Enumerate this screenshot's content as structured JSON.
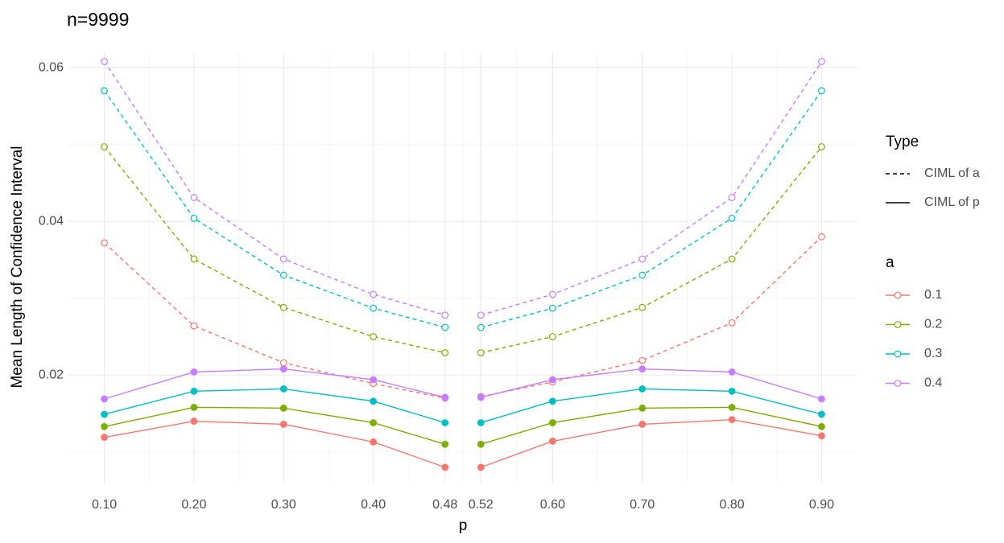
{
  "chart_data": {
    "type": "line",
    "title": "n=9999",
    "x_label": "p",
    "y_label": "Mean Length of Confidence Interval",
    "x": [
      0.1,
      0.2,
      0.3,
      0.4,
      0.48,
      null,
      0.52,
      0.6,
      0.7,
      0.8,
      0.9
    ],
    "xlim": [
      0.06,
      0.94
    ],
    "xticks": [
      {
        "value": 0.1,
        "label": "0.10"
      },
      {
        "value": 0.2,
        "label": "0.20"
      },
      {
        "value": 0.3,
        "label": "0.30"
      },
      {
        "value": 0.4,
        "label": "0.40"
      },
      0.48,
      0.52,
      {
        "value": 0.6,
        "label": "0.60"
      },
      {
        "value": 0.7,
        "label": "0.70"
      },
      {
        "value": 0.8,
        "label": "0.80"
      },
      {
        "value": 0.9,
        "label": "0.90"
      }
    ],
    "xminor": [
      0.15,
      0.25,
      0.35,
      0.44,
      0.5,
      0.56,
      0.65,
      0.75,
      0.85
    ],
    "ylim": [
      0.006,
      0.062
    ],
    "yticks": [
      0.02,
      0.04,
      0.06
    ],
    "yminor": [
      0.01,
      0.03,
      0.05
    ],
    "grid": true,
    "legend": {
      "type_title": "Type",
      "types": [
        {
          "name": "CIML of a",
          "dashed": true
        },
        {
          "name": "CIML of p",
          "dashed": false
        }
      ],
      "a_title": "a",
      "a_levels": [
        {
          "name": "0.1",
          "color": "#F8766D"
        },
        {
          "name": "0.2",
          "color": "#7CAE00"
        },
        {
          "name": "0.3",
          "color": "#00BFC4"
        },
        {
          "name": "0.4",
          "color": "#C77CFF"
        }
      ]
    },
    "series": [
      {
        "type": "CIML of a",
        "a": "0.1",
        "values": [
          0.0372,
          0.0264,
          0.0216,
          0.0189,
          0.017,
          null,
          0.0172,
          0.0191,
          0.0219,
          0.0268,
          0.038
        ]
      },
      {
        "type": "CIML of a",
        "a": "0.2",
        "values": [
          0.0497,
          0.0351,
          0.0288,
          0.025,
          0.0229,
          null,
          0.0229,
          0.025,
          0.0288,
          0.0351,
          0.0497
        ]
      },
      {
        "type": "CIML of a",
        "a": "0.3",
        "values": [
          0.057,
          0.0404,
          0.033,
          0.0287,
          0.0262,
          null,
          0.0262,
          0.0287,
          0.033,
          0.0404,
          0.057
        ]
      },
      {
        "type": "CIML of a",
        "a": "0.4",
        "values": [
          0.0608,
          0.0431,
          0.0351,
          0.0305,
          0.0278,
          null,
          0.0278,
          0.0305,
          0.0351,
          0.0431,
          0.0608
        ]
      },
      {
        "type": "CIML of p",
        "a": "0.1",
        "values": [
          0.0119,
          0.014,
          0.0136,
          0.0113,
          0.008,
          null,
          0.008,
          0.0114,
          0.0136,
          0.0142,
          0.0121
        ]
      },
      {
        "type": "CIML of p",
        "a": "0.2",
        "values": [
          0.0133,
          0.0158,
          0.0157,
          0.0138,
          0.011,
          null,
          0.011,
          0.0138,
          0.0157,
          0.0158,
          0.0133
        ]
      },
      {
        "type": "CIML of p",
        "a": "0.3",
        "values": [
          0.0149,
          0.0179,
          0.0182,
          0.0166,
          0.0138,
          null,
          0.0138,
          0.0166,
          0.0182,
          0.0179,
          0.0149
        ]
      },
      {
        "type": "CIML of p",
        "a": "0.4",
        "values": [
          0.0169,
          0.0204,
          0.0208,
          0.0194,
          0.0171,
          null,
          0.0171,
          0.0194,
          0.0208,
          0.0204,
          0.0169
        ]
      }
    ]
  }
}
